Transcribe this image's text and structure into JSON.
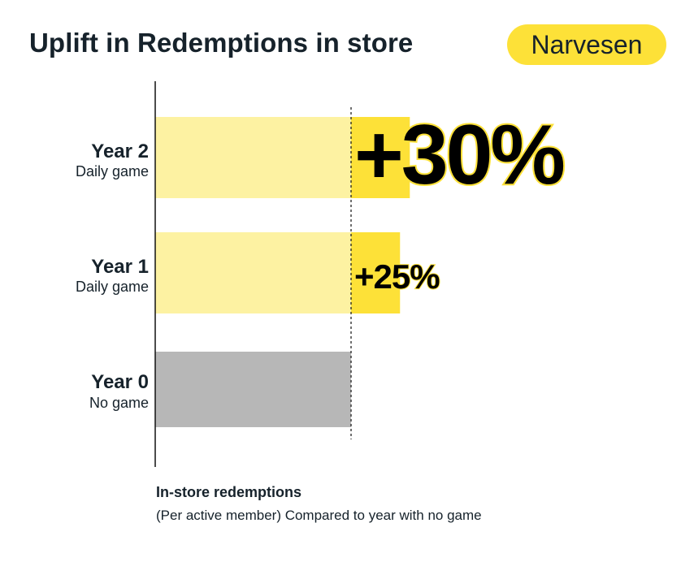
{
  "header": {
    "title": "Uplift in Redemptions in store",
    "brand": "Narvesen"
  },
  "footnote": {
    "title": "In-store redemptions",
    "subtitle": "(Per active member) Compared to year with no game"
  },
  "colors": {
    "baseline_pale": "#fdf2a2",
    "uplift_yellow": "#fde138",
    "no_game_gray": "#b7b7b7",
    "text_dark": "#16222b",
    "axis": "#111111"
  },
  "chart_data": {
    "type": "bar",
    "orientation": "horizontal",
    "categories": [
      {
        "label": "Year 2",
        "sublabel": "Daily game"
      },
      {
        "label": "Year 1",
        "sublabel": "Daily game"
      },
      {
        "label": "Year 0",
        "sublabel": "No game"
      }
    ],
    "baseline": 100,
    "values": [
      130,
      125,
      100
    ],
    "uplift_labels": [
      "+30%",
      "+25%",
      ""
    ],
    "reference_line": "baseline (dashed)",
    "title": "",
    "xlabel": "In-store redemptions",
    "ylabel": ""
  }
}
